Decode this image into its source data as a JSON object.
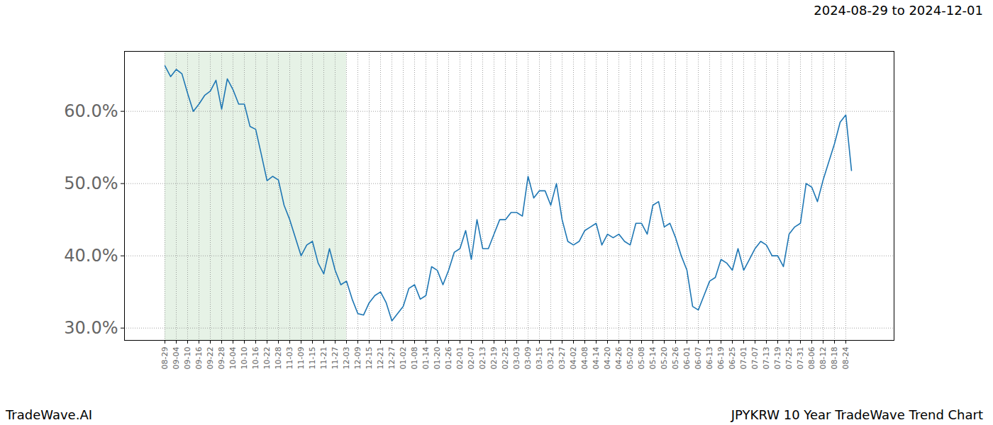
{
  "chart_data": {
    "type": "line",
    "title": "JPYKRW 10 Year TradeWave Trend Chart",
    "subtitle": "2024-08-29 to 2024-12-01",
    "caption": "TradeWave.AI",
    "categories": [
      "08-29",
      null,
      "09-04",
      null,
      "09-10",
      null,
      "09-16",
      null,
      "09-22",
      null,
      "09-28",
      null,
      "10-04",
      null,
      "10-10",
      null,
      "10-16",
      null,
      "10-22",
      null,
      "10-28",
      null,
      "11-03",
      null,
      "11-09",
      null,
      "11-15",
      null,
      "11-21",
      null,
      "11-27",
      null,
      "12-03",
      null,
      "12-09",
      null,
      "12-15",
      null,
      "12-21",
      null,
      "12-27",
      null,
      "01-02",
      null,
      "01-08",
      null,
      "01-14",
      null,
      "01-20",
      null,
      "01-26",
      null,
      "02-01",
      null,
      "02-07",
      null,
      "02-13",
      null,
      "02-19",
      null,
      "02-25",
      null,
      "03-03",
      null,
      "03-09",
      null,
      "03-15",
      null,
      "03-21",
      null,
      "03-27",
      null,
      "04-02",
      null,
      "04-08",
      null,
      "04-14",
      null,
      "04-20",
      null,
      "04-26",
      null,
      "05-02",
      null,
      "05-08",
      null,
      "05-14",
      null,
      "05-20",
      null,
      "05-26",
      null,
      "06-01",
      null,
      "06-07",
      null,
      "06-13",
      null,
      "06-19",
      null,
      "06-25",
      null,
      "07-01",
      null,
      "07-07",
      null,
      "07-13",
      null,
      "07-19",
      null,
      "07-25",
      null,
      "07-31",
      null,
      "08-06",
      null,
      "08-12",
      null,
      "08-18",
      null,
      "08-24",
      null
    ],
    "values": [
      66.3,
      64.8,
      65.8,
      65.2,
      62.5,
      60.0,
      61.0,
      62.2,
      62.8,
      64.3,
      60.3,
      64.5,
      63.0,
      61.0,
      61.0,
      57.9,
      57.5,
      54.0,
      50.4,
      51.0,
      50.5,
      47.0,
      45.0,
      42.5,
      40.0,
      41.5,
      42.0,
      39.0,
      37.5,
      41.0,
      38.0,
      36.0,
      36.5,
      34.0,
      32.0,
      31.8,
      33.5,
      34.5,
      35.0,
      33.5,
      31.0,
      32.0,
      33.0,
      35.5,
      36.0,
      34.0,
      34.5,
      38.5,
      38.0,
      36.0,
      38.0,
      40.5,
      41.0,
      43.5,
      39.5,
      45.0,
      41.0,
      41.0,
      43.0,
      45.0,
      45.0,
      46.0,
      46.0,
      45.5,
      51.0,
      48.0,
      49.0,
      49.0,
      47.0,
      50.0,
      45.0,
      42.0,
      41.5,
      42.0,
      43.5,
      44.0,
      44.5,
      41.5,
      43.0,
      42.5,
      43.0,
      42.0,
      41.5,
      44.5,
      44.5,
      43.0,
      47.0,
      47.5,
      44.0,
      44.5,
      42.5,
      40.0,
      38.0,
      33.0,
      32.5,
      34.5,
      36.5,
      37.0,
      39.5,
      39.0,
      38.0,
      41.0,
      38.0,
      39.5,
      41.0,
      42.0,
      41.5,
      40.0,
      40.0,
      38.5,
      43.0,
      44.0,
      44.5,
      50.0,
      49.5,
      47.5,
      50.5,
      53.0,
      55.5,
      58.5,
      59.5,
      51.8
    ],
    "color": "#1f77b4",
    "highlight": {
      "start": "08-29",
      "end": "12-03",
      "color": "#e6f2e6"
    },
    "ylim": [
      28.3,
      68.3
    ],
    "yticks": [
      {
        "value": 30,
        "label": "30.0%"
      },
      {
        "value": 40,
        "label": "40.0%"
      },
      {
        "value": 50,
        "label": "50.0%"
      },
      {
        "value": 60,
        "label": "60.0%"
      }
    ],
    "grid": true
  }
}
